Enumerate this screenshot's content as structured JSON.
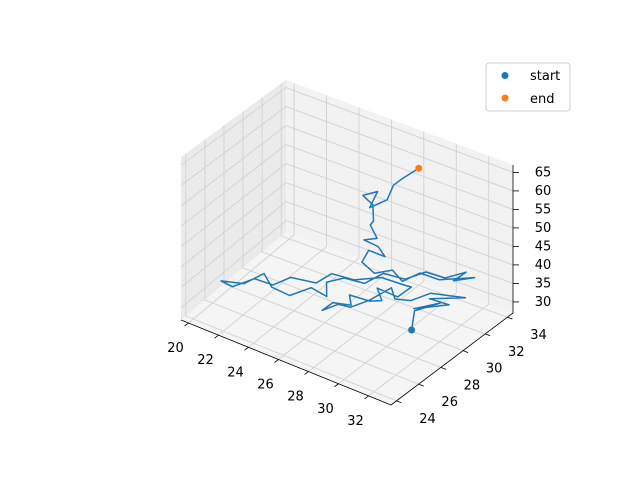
{
  "chart_data": {
    "type": "line3d",
    "title": "",
    "xlabel": "",
    "ylabel": "",
    "zlabel": "",
    "xlim": [
      19.5,
      33.5
    ],
    "ylim": [
      23.5,
      34.5
    ],
    "zlim": [
      27,
      67
    ],
    "xticks": [
      "20",
      "22",
      "24",
      "26",
      "28",
      "30",
      "32"
    ],
    "yticks": [
      "24",
      "26",
      "28",
      "30",
      "32",
      "34"
    ],
    "zticks": [
      "30",
      "35",
      "40",
      "45",
      "50",
      "55",
      "60",
      "65"
    ],
    "grid": true,
    "legend_position": "upper-right",
    "series": [
      {
        "type": "line",
        "color": "#1f77b4",
        "points": [
          [
            30.5,
            29.6,
            28.5
          ],
          [
            30.0,
            30.6,
            30.5
          ],
          [
            30.8,
            31.8,
            31.2
          ],
          [
            29.7,
            31.0,
            29.8
          ],
          [
            31.1,
            32.2,
            30.4
          ],
          [
            30.4,
            31.4,
            32.5
          ],
          [
            31.5,
            33.1,
            31.0
          ],
          [
            30.2,
            31.8,
            32.8
          ],
          [
            29.5,
            31.0,
            31.5
          ],
          [
            28.9,
            30.4,
            32.2
          ],
          [
            28.4,
            30.8,
            33.5
          ],
          [
            27.6,
            29.9,
            31.0
          ],
          [
            27.0,
            29.0,
            30.2
          ],
          [
            26.6,
            28.4,
            31.5
          ],
          [
            25.9,
            27.9,
            30.0
          ],
          [
            26.4,
            28.2,
            32.0
          ],
          [
            27.1,
            28.9,
            31.0
          ],
          [
            26.8,
            29.2,
            32.5
          ],
          [
            27.9,
            29.5,
            32.0
          ],
          [
            28.2,
            30.2,
            31.2
          ],
          [
            27.7,
            30.5,
            33.0
          ],
          [
            28.8,
            30.8,
            31.8
          ],
          [
            29.2,
            31.5,
            33.5
          ],
          [
            28.6,
            31.9,
            32.2
          ],
          [
            27.5,
            31.2,
            34.0
          ],
          [
            26.3,
            30.4,
            33.2
          ],
          [
            25.4,
            29.6,
            35.0
          ],
          [
            24.8,
            29.0,
            33.0
          ],
          [
            23.6,
            28.3,
            34.0
          ],
          [
            22.8,
            27.8,
            32.0
          ],
          [
            21.9,
            27.3,
            33.2
          ],
          [
            21.0,
            26.5,
            31.5
          ],
          [
            20.5,
            26.1,
            33.0
          ],
          [
            21.5,
            26.9,
            32.2
          ],
          [
            22.4,
            27.5,
            34.8
          ],
          [
            23.1,
            27.2,
            33.0
          ],
          [
            24.0,
            27.6,
            31.5
          ],
          [
            24.8,
            28.5,
            32.8
          ],
          [
            25.6,
            28.8,
            31.2
          ],
          [
            25.2,
            29.4,
            33.0
          ],
          [
            26.0,
            29.9,
            34.2
          ],
          [
            26.9,
            30.5,
            33.0
          ],
          [
            27.7,
            31.1,
            35.5
          ],
          [
            28.6,
            31.8,
            34.0
          ],
          [
            29.5,
            32.4,
            36.0
          ],
          [
            30.3,
            33.0,
            34.5
          ],
          [
            31.2,
            33.6,
            36.2
          ],
          [
            30.7,
            33.2,
            34.0
          ],
          [
            31.6,
            33.8,
            35.0
          ],
          [
            30.0,
            32.9,
            33.8
          ],
          [
            29.2,
            32.3,
            35.5
          ],
          [
            28.5,
            31.7,
            33.5
          ],
          [
            28.0,
            31.5,
            36.0
          ],
          [
            27.2,
            31.0,
            35.0
          ],
          [
            26.6,
            30.7,
            37.5
          ],
          [
            26.9,
            30.9,
            40.5
          ],
          [
            27.6,
            31.4,
            39.0
          ],
          [
            27.3,
            31.2,
            41.5
          ],
          [
            26.8,
            30.6,
            43.5
          ],
          [
            27.5,
            30.8,
            44.5
          ],
          [
            27.0,
            30.9,
            47.0
          ],
          [
            27.4,
            30.6,
            49.0
          ],
          [
            27.1,
            31.0,
            52.0
          ],
          [
            26.6,
            30.8,
            54.0
          ],
          [
            27.2,
            31.3,
            55.0
          ],
          [
            26.9,
            31.0,
            51.0
          ],
          [
            27.6,
            31.6,
            53.0
          ],
          [
            27.8,
            31.9,
            56.5
          ],
          [
            28.1,
            32.2,
            58.0
          ],
          [
            28.8,
            32.8,
            61.0
          ]
        ]
      }
    ],
    "start": {
      "label": "start",
      "color": "#1f77b4",
      "point": [
        30.5,
        29.6,
        28.5
      ]
    },
    "end": {
      "label": "end",
      "color": "#ff7f0e",
      "point": [
        28.8,
        32.8,
        61.0
      ]
    }
  }
}
